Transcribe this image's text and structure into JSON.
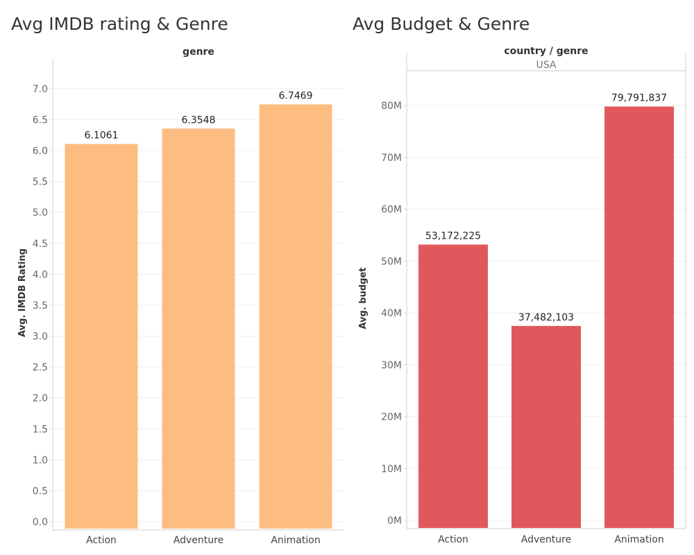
{
  "sheets": {
    "left_title": "Avg IMDB rating & Genre",
    "right_title": "Avg Budget & Genre"
  },
  "colors": {
    "rating_bar": "#fdbd80",
    "budget_bar": "#e0585b"
  },
  "chart_data": [
    {
      "type": "bar",
      "title": "Avg IMDB rating & Genre",
      "header": "genre",
      "xlabel": "",
      "ylabel": "Avg. IMDB Rating",
      "categories": [
        "Action",
        "Adventure",
        "Animation"
      ],
      "values": [
        6.1061,
        6.3548,
        6.7469
      ],
      "value_labels": [
        "6.1061",
        "6.3548",
        "6.7469"
      ],
      "ylim": [
        0,
        7.2
      ],
      "yticks": [
        0,
        0.5,
        1,
        1.5,
        2,
        2.5,
        3,
        3.5,
        4,
        4.5,
        5,
        5.5,
        6,
        6.5,
        7
      ],
      "ytick_labels": [
        "0.0",
        "0.5",
        "1.0",
        "1.5",
        "2.0",
        "2.5",
        "3.0",
        "3.5",
        "4.0",
        "4.5",
        "5.0",
        "5.5",
        "6.0",
        "6.5",
        "7.0"
      ],
      "grid": true
    },
    {
      "type": "bar",
      "title": "Avg Budget & Genre",
      "header": "country / genre",
      "subheader": "USA",
      "xlabel": "",
      "ylabel": "Avg. budget",
      "categories": [
        "Action",
        "Adventure",
        "Animation"
      ],
      "values": [
        53172225,
        37482103,
        79791837
      ],
      "value_labels": [
        "53,172,225",
        "37,482,103",
        "79,791,837"
      ],
      "ylim": [
        0,
        80000000
      ],
      "yticks": [
        0,
        10000000,
        20000000,
        30000000,
        40000000,
        50000000,
        60000000,
        70000000,
        80000000
      ],
      "ytick_labels": [
        "0M",
        "10M",
        "20M",
        "30M",
        "40M",
        "50M",
        "60M",
        "70M",
        "80M"
      ],
      "grid": true
    }
  ]
}
